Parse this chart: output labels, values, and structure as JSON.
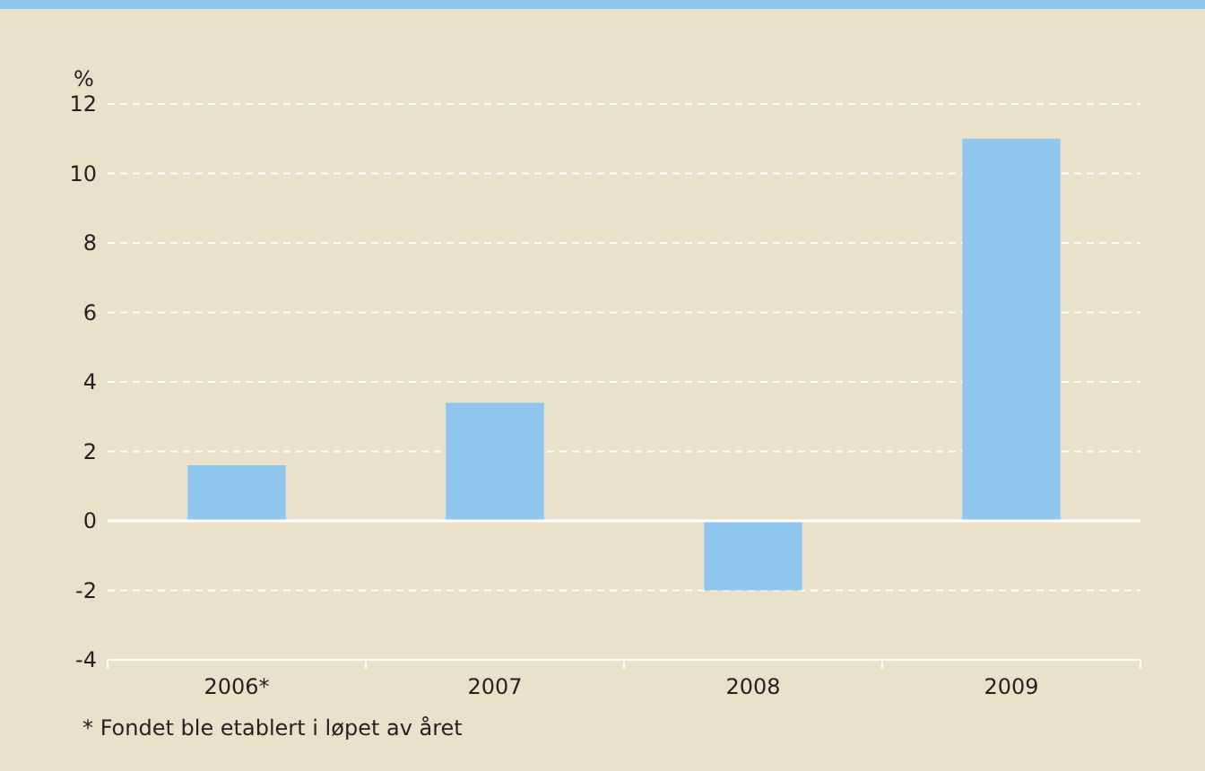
{
  "chart_data": {
    "type": "bar",
    "ylabel": "%",
    "categories": [
      "2006*",
      "2007",
      "2008",
      "2009"
    ],
    "values": [
      1.6,
      3.4,
      -2.0,
      11.0
    ],
    "color": "#8fc6ee",
    "ylim": [
      -4,
      12
    ],
    "yticks": [
      -4,
      -2,
      0,
      2,
      4,
      6,
      8,
      10,
      12
    ],
    "grid": "y",
    "annotations": [
      "* Fondet ble etablert i løpet av året"
    ]
  }
}
